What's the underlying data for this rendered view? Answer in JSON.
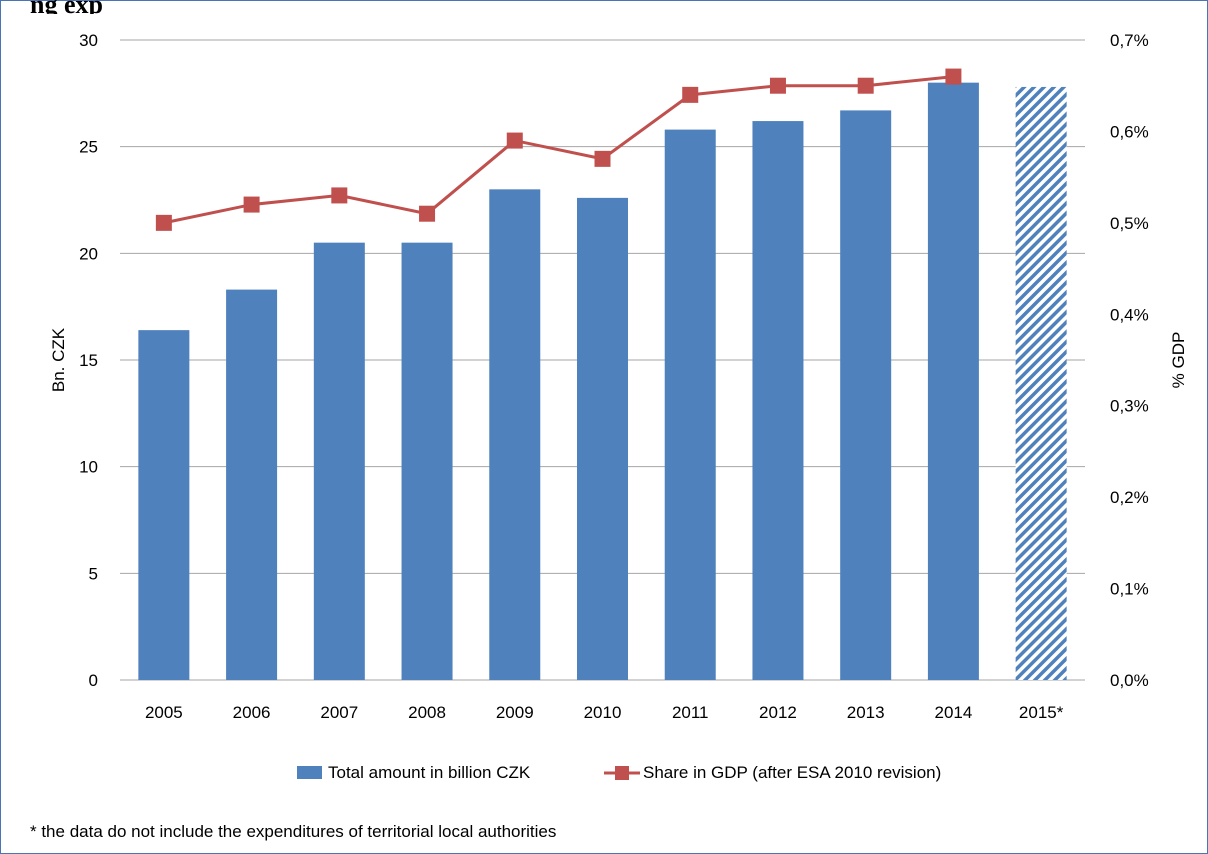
{
  "title_fragment": "ng exp",
  "chart_data": {
    "type": "bar",
    "categories": [
      "2005",
      "2006",
      "2007",
      "2008",
      "2009",
      "2010",
      "2011",
      "2012",
      "2013",
      "2014",
      "2015*"
    ],
    "series": [
      {
        "name": "Total amount in billion CZK",
        "type": "bar",
        "axis": "left",
        "values": [
          16.4,
          18.3,
          20.5,
          20.5,
          23.0,
          22.6,
          25.8,
          26.2,
          26.7,
          28.0,
          27.8
        ],
        "color": "#4f81bd",
        "hatched_categories": [
          "2015*"
        ]
      },
      {
        "name": "Share in GDP (after ESA 2010 revision)",
        "type": "line",
        "axis": "right",
        "values": [
          0.5,
          0.52,
          0.53,
          0.51,
          0.59,
          0.57,
          0.64,
          0.65,
          0.65,
          0.66,
          null
        ],
        "color": "#c0504d"
      }
    ],
    "ylabel": "Bn. CZK",
    "ylim": [
      0,
      30
    ],
    "yticks": [
      "0",
      "5",
      "10",
      "15",
      "20",
      "25",
      "30"
    ],
    "y2label": "% GDP",
    "y2lim": [
      0,
      0.7
    ],
    "y2ticks": [
      "0,0%",
      "0,1%",
      "0,2%",
      "0,3%",
      "0,4%",
      "0,5%",
      "0,6%",
      "0,7%"
    ],
    "grid": true,
    "legend_position": "bottom"
  },
  "footnote": "* the data do not include the expenditures of territorial local authorities"
}
